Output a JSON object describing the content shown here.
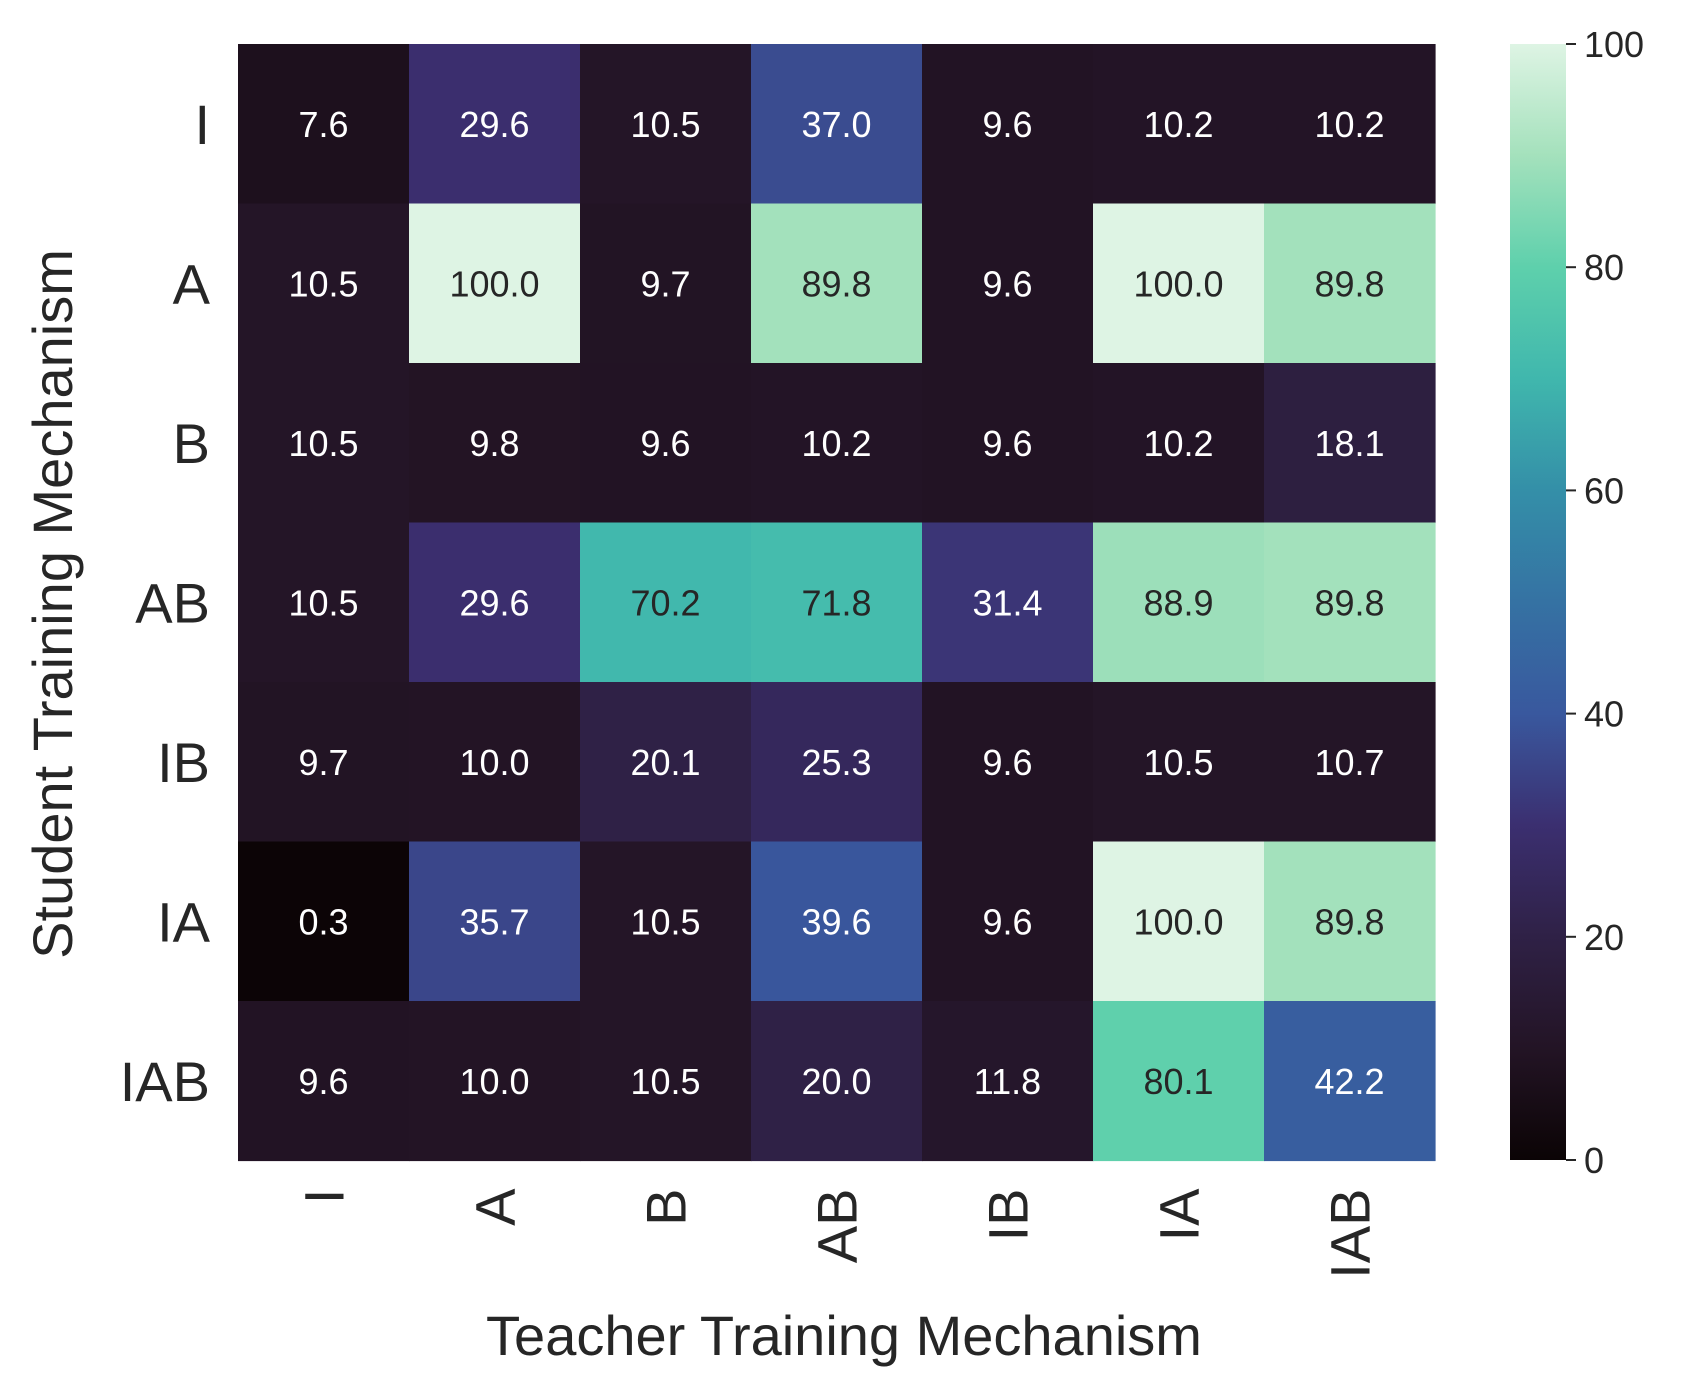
{
  "chart_data": {
    "type": "heatmap",
    "xlabel": "Teacher Training Mechanism",
    "ylabel": "Student Training Mechanism",
    "x_categories": [
      "I",
      "A",
      "B",
      "AB",
      "IB",
      "IA",
      "IAB"
    ],
    "y_categories": [
      "I",
      "A",
      "B",
      "AB",
      "IB",
      "IA",
      "IAB"
    ],
    "values": [
      [
        7.6,
        29.6,
        10.5,
        37.0,
        9.6,
        10.2,
        10.2
      ],
      [
        10.5,
        100.0,
        9.7,
        89.8,
        9.6,
        100.0,
        89.8
      ],
      [
        10.5,
        9.8,
        9.6,
        10.2,
        9.6,
        10.2,
        18.1
      ],
      [
        10.5,
        29.6,
        70.2,
        71.8,
        31.4,
        88.9,
        89.8
      ],
      [
        9.7,
        10.0,
        20.1,
        25.3,
        9.6,
        10.5,
        10.7
      ],
      [
        0.3,
        35.7,
        10.5,
        39.6,
        9.6,
        100.0,
        89.8
      ],
      [
        9.6,
        10.0,
        10.5,
        20.0,
        11.8,
        80.1,
        42.2
      ]
    ],
    "colorbar": {
      "range": [
        0,
        100
      ],
      "ticks": [
        0,
        20,
        40,
        60,
        80,
        100
      ],
      "colormap": "mako"
    },
    "colors": {
      "text_dark": "#262626",
      "text_light": "#ffffff",
      "background": "#ffffff"
    }
  }
}
